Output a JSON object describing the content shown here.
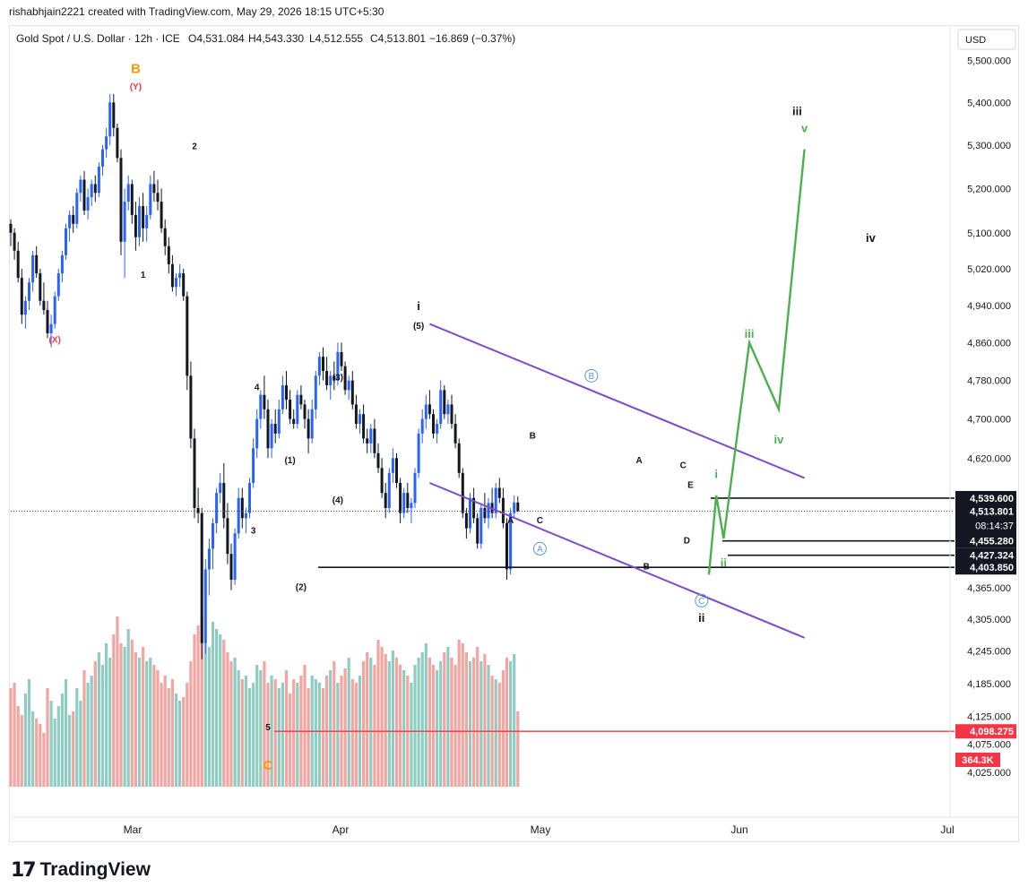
{
  "header": {
    "attribution": "rishabhjain2221 created with TradingView.com, May 29, 2026 18:15 UTC+5:30"
  },
  "legend": {
    "symbol": "Gold Spot / U.S. Dollar · 12h · ICE",
    "open": "O4,531.084",
    "high": "H4,543.330",
    "low": "L4,512.555",
    "close": "C4,513.801",
    "change": "−16.869 (−0.37%)"
  },
  "currency_button": "USD",
  "footer": {
    "logo_text": "TradingView",
    "logo_mark": "17"
  },
  "colors": {
    "up": "#2962ff",
    "down": "#131722",
    "vol_up": "#8fcdc2",
    "vol_down": "#f3a5a2",
    "channel": "#7d4cc9",
    "projection": "#4caf50",
    "wave_red": "#f23645",
    "wave_orange": "#ff9800",
    "wave_blue": "#5b9bd5"
  },
  "chart_data": {
    "type": "candlestick",
    "title": "Gold Spot / U.S. Dollar · 12h · ICE",
    "y_axis": {
      "min": 4000,
      "max": 5560,
      "scale": "log",
      "ticks": [
        "5,500.000",
        "5,400.000",
        "5,300.000",
        "5,200.000",
        "5,100.000",
        "5,020.000",
        "4,940.000",
        "4,860.000",
        "4,780.000",
        "4,700.000",
        "4,620.000",
        "4,539.600",
        "4,513.801",
        "4,455.280",
        "4,427.324",
        "4,403.850",
        "4,365.000",
        "4,305.000",
        "4,245.000",
        "4,185.000",
        "4,125.000",
        "4,098.275",
        "4,075.000",
        "4,025.000"
      ],
      "tick_values": [
        5500,
        5400,
        5300,
        5200,
        5100,
        5020,
        4940,
        4860,
        4780,
        4700,
        4620,
        4539.6,
        4513.801,
        4455.28,
        4427.324,
        4403.85,
        4365,
        4305,
        4245,
        4185,
        4125,
        4098.275,
        4075,
        4025
      ]
    },
    "x_axis": {
      "labels": [
        "Mar",
        "Apr",
        "May",
        "Jun",
        "Jul"
      ]
    },
    "price_labels": [
      {
        "value": 4539.6,
        "label": "4,539.600",
        "style": "dark"
      },
      {
        "value": 4513.801,
        "label": "4,513.801",
        "style": "dark",
        "sub": "08:14:37"
      },
      {
        "value": 4455.28,
        "label": "4,455.280",
        "style": "dark"
      },
      {
        "value": 4427.324,
        "label": "4,427.324",
        "style": "dark"
      },
      {
        "value": 4403.85,
        "label": "4,403.850",
        "style": "dark"
      },
      {
        "value": 4098.275,
        "label": "4,098.275",
        "style": "red"
      }
    ],
    "volume_label": "364.3K",
    "candles": [
      [
        5120,
        5130,
        5070,
        5100
      ],
      [
        5100,
        5110,
        5040,
        5060
      ],
      [
        5060,
        5080,
        4990,
        5000
      ],
      [
        5000,
        5020,
        4900,
        4920
      ],
      [
        4920,
        4960,
        4890,
        4950
      ],
      [
        4950,
        5000,
        4930,
        4990
      ],
      [
        4990,
        5060,
        4970,
        5050
      ],
      [
        5050,
        5070,
        5000,
        5010
      ],
      [
        5010,
        5020,
        4940,
        4950
      ],
      [
        4950,
        4990,
        4920,
        4930
      ],
      [
        4930,
        4950,
        4870,
        4880
      ],
      [
        4880,
        4920,
        4850,
        4900
      ],
      [
        4900,
        4970,
        4890,
        4960
      ],
      [
        4960,
        5020,
        4950,
        5010
      ],
      [
        5010,
        5060,
        4990,
        5050
      ],
      [
        5050,
        5120,
        5040,
        5110
      ],
      [
        5110,
        5150,
        5080,
        5140
      ],
      [
        5140,
        5160,
        5100,
        5120
      ],
      [
        5120,
        5200,
        5110,
        5190
      ],
      [
        5190,
        5230,
        5170,
        5220
      ],
      [
        5220,
        5240,
        5140,
        5150
      ],
      [
        5150,
        5200,
        5130,
        5180
      ],
      [
        5180,
        5220,
        5160,
        5210
      ],
      [
        5210,
        5230,
        5170,
        5190
      ],
      [
        5190,
        5260,
        5180,
        5250
      ],
      [
        5250,
        5300,
        5230,
        5290
      ],
      [
        5290,
        5340,
        5270,
        5320
      ],
      [
        5320,
        5420,
        5300,
        5400
      ],
      [
        5400,
        5420,
        5320,
        5340
      ],
      [
        5340,
        5350,
        5260,
        5270
      ],
      [
        5270,
        5290,
        5050,
        5080
      ],
      [
        5080,
        5200,
        5000,
        5170
      ],
      [
        5170,
        5230,
        5150,
        5210
      ],
      [
        5210,
        5220,
        5120,
        5140
      ],
      [
        5140,
        5170,
        5060,
        5090
      ],
      [
        5090,
        5180,
        5070,
        5160
      ],
      [
        5160,
        5190,
        5080,
        5110
      ],
      [
        5110,
        5160,
        5080,
        5140
      ],
      [
        5140,
        5230,
        5130,
        5210
      ],
      [
        5210,
        5240,
        5170,
        5190
      ],
      [
        5190,
        5220,
        5150,
        5170
      ],
      [
        5170,
        5200,
        5100,
        5110
      ],
      [
        5110,
        5130,
        5050,
        5070
      ],
      [
        5070,
        5090,
        5010,
        5030
      ],
      [
        5030,
        5050,
        4970,
        4980
      ],
      [
        4980,
        5010,
        4960,
        5000
      ],
      [
        5000,
        5030,
        4980,
        5010
      ],
      [
        5010,
        5020,
        4950,
        4960
      ],
      [
        4960,
        4970,
        4760,
        4790
      ],
      [
        4790,
        4820,
        4640,
        4660
      ],
      [
        4660,
        4680,
        4500,
        4520
      ],
      [
        4520,
        4560,
        4490,
        4510
      ],
      [
        4510,
        4520,
        4230,
        4260
      ],
      [
        4260,
        4420,
        4240,
        4400
      ],
      [
        4400,
        4460,
        4350,
        4440
      ],
      [
        4440,
        4500,
        4400,
        4490
      ],
      [
        4490,
        4560,
        4470,
        4550
      ],
      [
        4550,
        4590,
        4530,
        4570
      ],
      [
        4570,
        4610,
        4480,
        4500
      ],
      [
        4500,
        4530,
        4410,
        4430
      ],
      [
        4430,
        4450,
        4360,
        4380
      ],
      [
        4380,
        4480,
        4370,
        4470
      ],
      [
        4470,
        4560,
        4460,
        4540
      ],
      [
        4540,
        4560,
        4480,
        4500
      ],
      [
        4500,
        4520,
        4470,
        4510
      ],
      [
        4510,
        4580,
        4500,
        4570
      ],
      [
        4570,
        4660,
        4560,
        4640
      ],
      [
        4640,
        4720,
        4620,
        4700
      ],
      [
        4700,
        4760,
        4680,
        4750
      ],
      [
        4750,
        4790,
        4700,
        4720
      ],
      [
        4720,
        4740,
        4620,
        4640
      ],
      [
        4640,
        4700,
        4620,
        4690
      ],
      [
        4690,
        4720,
        4650,
        4670
      ],
      [
        4670,
        4740,
        4660,
        4720
      ],
      [
        4720,
        4790,
        4710,
        4770
      ],
      [
        4770,
        4800,
        4720,
        4740
      ],
      [
        4740,
        4760,
        4690,
        4700
      ],
      [
        4700,
        4720,
        4680,
        4690
      ],
      [
        4690,
        4760,
        4680,
        4750
      ],
      [
        4750,
        4770,
        4720,
        4730
      ],
      [
        4730,
        4740,
        4680,
        4700
      ],
      [
        4700,
        4720,
        4630,
        4660
      ],
      [
        4660,
        4740,
        4650,
        4720
      ],
      [
        4720,
        4800,
        4700,
        4790
      ],
      [
        4790,
        4840,
        4770,
        4830
      ],
      [
        4830,
        4850,
        4780,
        4800
      ],
      [
        4800,
        4830,
        4760,
        4770
      ],
      [
        4770,
        4800,
        4740,
        4790
      ],
      [
        4790,
        4820,
        4760,
        4780
      ],
      [
        4780,
        4860,
        4770,
        4840
      ],
      [
        4840,
        4860,
        4800,
        4810
      ],
      [
        4810,
        4820,
        4750,
        4760
      ],
      [
        4760,
        4790,
        4740,
        4780
      ],
      [
        4780,
        4800,
        4720,
        4730
      ],
      [
        4730,
        4750,
        4680,
        4690
      ],
      [
        4690,
        4720,
        4670,
        4710
      ],
      [
        4710,
        4730,
        4650,
        4660
      ],
      [
        4660,
        4680,
        4630,
        4650
      ],
      [
        4650,
        4690,
        4630,
        4680
      ],
      [
        4680,
        4700,
        4620,
        4630
      ],
      [
        4630,
        4650,
        4590,
        4600
      ],
      [
        4600,
        4620,
        4540,
        4550
      ],
      [
        4550,
        4570,
        4500,
        4520
      ],
      [
        4520,
        4600,
        4510,
        4590
      ],
      [
        4590,
        4640,
        4570,
        4620
      ],
      [
        4620,
        4630,
        4560,
        4570
      ],
      [
        4570,
        4580,
        4490,
        4510
      ],
      [
        4510,
        4560,
        4500,
        4550
      ],
      [
        4550,
        4570,
        4510,
        4520
      ],
      [
        4520,
        4540,
        4490,
        4530
      ],
      [
        4530,
        4600,
        4520,
        4590
      ],
      [
        4590,
        4680,
        4580,
        4670
      ],
      [
        4670,
        4720,
        4650,
        4700
      ],
      [
        4700,
        4750,
        4680,
        4730
      ],
      [
        4730,
        4760,
        4700,
        4710
      ],
      [
        4710,
        4720,
        4660,
        4670
      ],
      [
        4670,
        4700,
        4650,
        4690
      ],
      [
        4690,
        4780,
        4680,
        4760
      ],
      [
        4760,
        4770,
        4700,
        4710
      ],
      [
        4710,
        4740,
        4690,
        4730
      ],
      [
        4730,
        4750,
        4680,
        4690
      ],
      [
        4690,
        4710,
        4640,
        4650
      ],
      [
        4650,
        4660,
        4580,
        4590
      ],
      [
        4590,
        4600,
        4500,
        4510
      ],
      [
        4510,
        4520,
        4460,
        4480
      ],
      [
        4480,
        4550,
        4470,
        4540
      ],
      [
        4540,
        4560,
        4490,
        4500
      ],
      [
        4500,
        4510,
        4440,
        4450
      ],
      [
        4450,
        4530,
        4440,
        4520
      ],
      [
        4520,
        4550,
        4490,
        4500
      ],
      [
        4500,
        4540,
        4480,
        4530
      ],
      [
        4530,
        4560,
        4500,
        4510
      ],
      [
        4510,
        4570,
        4500,
        4560
      ],
      [
        4560,
        4580,
        4530,
        4540
      ],
      [
        4540,
        4560,
        4480,
        4490
      ],
      [
        4490,
        4500,
        4380,
        4400
      ],
      [
        4400,
        4520,
        4390,
        4510
      ],
      [
        4510,
        4545,
        4500,
        4531
      ],
      [
        4531,
        4543,
        4512,
        4514
      ]
    ],
    "volumes": [
      55,
      58,
      45,
      40,
      52,
      60,
      42,
      38,
      35,
      30,
      55,
      48,
      38,
      45,
      52,
      60,
      40,
      42,
      55,
      48,
      65,
      58,
      62,
      70,
      75,
      68,
      80,
      72,
      85,
      95,
      80,
      78,
      88,
      82,
      75,
      72,
      78,
      70,
      72,
      68,
      65,
      58,
      62,
      55,
      60,
      52,
      48,
      50,
      58,
      70,
      85,
      90,
      95,
      80,
      78,
      92,
      88,
      85,
      82,
      75,
      70,
      72,
      65,
      60,
      62,
      55,
      58,
      68,
      65,
      70,
      58,
      62,
      60,
      55,
      58,
      65,
      52,
      60,
      58,
      62,
      68,
      55,
      62,
      60,
      58,
      55,
      62,
      65,
      70,
      58,
      62,
      66,
      72,
      60,
      58,
      62,
      70,
      75,
      72,
      68,
      82,
      78,
      74,
      70,
      76,
      72,
      68,
      65,
      62,
      58,
      68,
      72,
      75,
      80,
      72,
      68,
      65,
      70,
      75,
      78,
      72,
      68,
      82,
      80,
      75,
      70,
      72,
      78,
      70,
      74,
      68,
      62,
      60,
      58,
      65,
      72,
      70,
      74,
      42
    ],
    "wave_labels": [
      {
        "text": "B",
        "color": "orange",
        "i": 34,
        "v": 5470,
        "pos": "above"
      },
      {
        "text": "(Y)",
        "color": "red",
        "i": 34,
        "v": 5430,
        "pos": "above"
      },
      {
        "text": "(X)",
        "color": "red",
        "i": 12,
        "v": 4860,
        "pos": "below"
      },
      {
        "text": "2",
        "color": "dark",
        "i": 50,
        "v": 5290,
        "pos": "above"
      },
      {
        "text": "1",
        "color": "dark",
        "i": 36,
        "v": 5000,
        "pos": "below"
      },
      {
        "text": "4",
        "color": "dark",
        "i": 67,
        "v": 4760,
        "pos": "above"
      },
      {
        "text": "3",
        "color": "dark",
        "i": 66,
        "v": 4470,
        "pos": "below"
      },
      {
        "text": "5",
        "color": "dark",
        "i": 70,
        "v": 4100,
        "pos": "below"
      },
      {
        "text": "C",
        "color": "orange",
        "i": 70,
        "v": 4030,
        "pos": "below"
      },
      {
        "text": "(1)",
        "color": "dark",
        "i": 76,
        "v": 4610,
        "pos": "above"
      },
      {
        "text": "(2)",
        "color": "dark",
        "i": 79,
        "v": 4360,
        "pos": "below"
      },
      {
        "text": "(3)",
        "color": "dark",
        "i": 89,
        "v": 4780,
        "pos": "above"
      },
      {
        "text": "(4)",
        "color": "dark",
        "i": 89,
        "v": 4530,
        "pos": "above"
      },
      {
        "text": "i",
        "color": "dark",
        "i": 111,
        "v": 4930,
        "pos": "above"
      },
      {
        "text": "(5)",
        "color": "dark",
        "i": 111,
        "v": 4890,
        "pos": "above"
      },
      {
        "text": "B",
        "color": "blue",
        "i": 158,
        "v": 4790,
        "pos": "circle"
      },
      {
        "text": "A",
        "color": "blue",
        "i": 144,
        "v": 4440,
        "pos": "circle"
      },
      {
        "text": "B",
        "color": "dark",
        "i": 142,
        "v": 4660,
        "pos": "above"
      },
      {
        "text": "A",
        "color": "dark",
        "i": 136,
        "v": 4490,
        "pos": "below"
      },
      {
        "text": "C",
        "color": "dark",
        "i": 144,
        "v": 4490,
        "pos": "below"
      },
      {
        "text": "A",
        "color": "dark",
        "i": 171,
        "v": 4610,
        "pos": "above"
      },
      {
        "text": "B",
        "color": "dark",
        "i": 173,
        "v": 4400,
        "pos": "above"
      },
      {
        "text": "C",
        "color": "dark",
        "i": 183,
        "v": 4600,
        "pos": "above"
      },
      {
        "text": "E",
        "color": "dark",
        "i": 185,
        "v": 4560,
        "pos": "above"
      },
      {
        "text": "D",
        "color": "dark",
        "i": 184,
        "v": 4450,
        "pos": "above"
      },
      {
        "text": "C",
        "color": "blue",
        "i": 188,
        "v": 4340,
        "pos": "circle"
      },
      {
        "text": "ii",
        "color": "dark",
        "i": 188,
        "v": 4300,
        "pos": "below"
      },
      {
        "text": "i",
        "color": "green",
        "i": 192,
        "v": 4580,
        "pos": "above"
      },
      {
        "text": "ii",
        "color": "green",
        "i": 194,
        "v": 4405,
        "pos": "above"
      },
      {
        "text": "iii",
        "color": "green",
        "i": 201,
        "v": 4870,
        "pos": "above"
      },
      {
        "text": "iv",
        "color": "green",
        "i": 209,
        "v": 4650,
        "pos": "above"
      },
      {
        "text": "v",
        "color": "green",
        "i": 216,
        "v": 5330,
        "pos": "above"
      },
      {
        "text": "iii",
        "color": "dark",
        "i": 214,
        "v": 5370,
        "pos": "above"
      },
      {
        "text": "iv",
        "color": "dark",
        "i": 234,
        "v": 5080,
        "pos": "above"
      }
    ],
    "projection": [
      [
        190,
        4390
      ],
      [
        192,
        4545
      ],
      [
        194,
        4460
      ],
      [
        201,
        4860
      ],
      [
        209,
        4720
      ],
      [
        216,
        5290
      ]
    ],
    "channel": [
      [
        [
          114,
          4900
        ],
        [
          216,
          4580
        ]
      ],
      [
        [
          114,
          4570
        ],
        [
          216,
          4270
        ]
      ]
    ]
  }
}
